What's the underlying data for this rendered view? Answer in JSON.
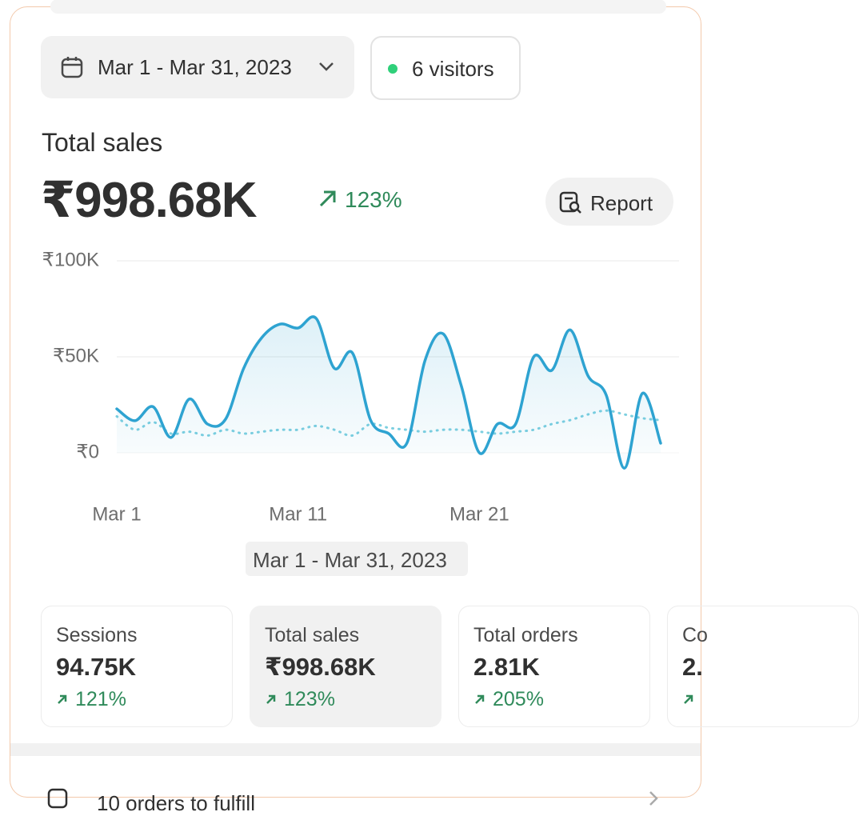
{
  "header": {
    "date_range": "Mar 1 - Mar 31, 2023",
    "visitors": "6 visitors"
  },
  "summary": {
    "label": "Total sales",
    "value": "₹998.68K",
    "change": "123%",
    "report_button": "Report"
  },
  "chart_data": {
    "type": "line",
    "categories": [
      "Mar 1",
      null,
      null,
      null,
      null,
      null,
      null,
      null,
      null,
      null,
      "Mar 11",
      null,
      null,
      null,
      null,
      null,
      null,
      null,
      null,
      null,
      "Mar 21",
      null,
      null,
      null,
      null,
      null,
      null,
      null,
      null,
      null,
      null
    ],
    "series": [
      {
        "color": "#2ea3d1",
        "style": "solid",
        "area": true,
        "values": [
          22900,
          16700,
          24000,
          8000,
          28000,
          15000,
          17500,
          44000,
          60000,
          67000,
          65000,
          70000,
          44000,
          52000,
          17000,
          10000,
          5000,
          48000,
          62000,
          35000,
          0,
          15000,
          15000,
          50000,
          43000,
          64000,
          40000,
          30000,
          -8000,
          31000,
          5000
        ]
      },
      {
        "color": "#7ccfe0",
        "style": "dotted",
        "area": false,
        "values": [
          19000,
          12000,
          16000,
          10000,
          11000,
          9000,
          12000,
          10000,
          11000,
          12000,
          12000,
          14000,
          12000,
          9000,
          15000,
          13000,
          12000,
          11000,
          12000,
          12000,
          11000,
          10000,
          11000,
          12000,
          15000,
          17000,
          20000,
          22000,
          20000,
          18000,
          17000
        ]
      }
    ],
    "ylim": [
      -10000,
      100000
    ],
    "yticks": [
      {
        "value": 0,
        "label": "₹0"
      },
      {
        "value": 50000,
        "label": "₹50K"
      },
      {
        "value": 100000,
        "label": "₹100K"
      }
    ],
    "grid": true,
    "x_label": "Mar 1 - Mar 31, 2023"
  },
  "metrics": [
    {
      "label": "Sessions",
      "value": "94.75K",
      "change": "121%",
      "selected": false
    },
    {
      "label": "Total sales",
      "value": "₹998.68K",
      "change": "123%",
      "selected": true
    },
    {
      "label": "Total orders",
      "value": "2.81K",
      "change": "205%",
      "selected": false
    },
    {
      "label": "Co",
      "value": "2.",
      "change": "",
      "selected": false
    }
  ],
  "tasks": [
    {
      "label": "10 orders to fulfill"
    }
  ]
}
